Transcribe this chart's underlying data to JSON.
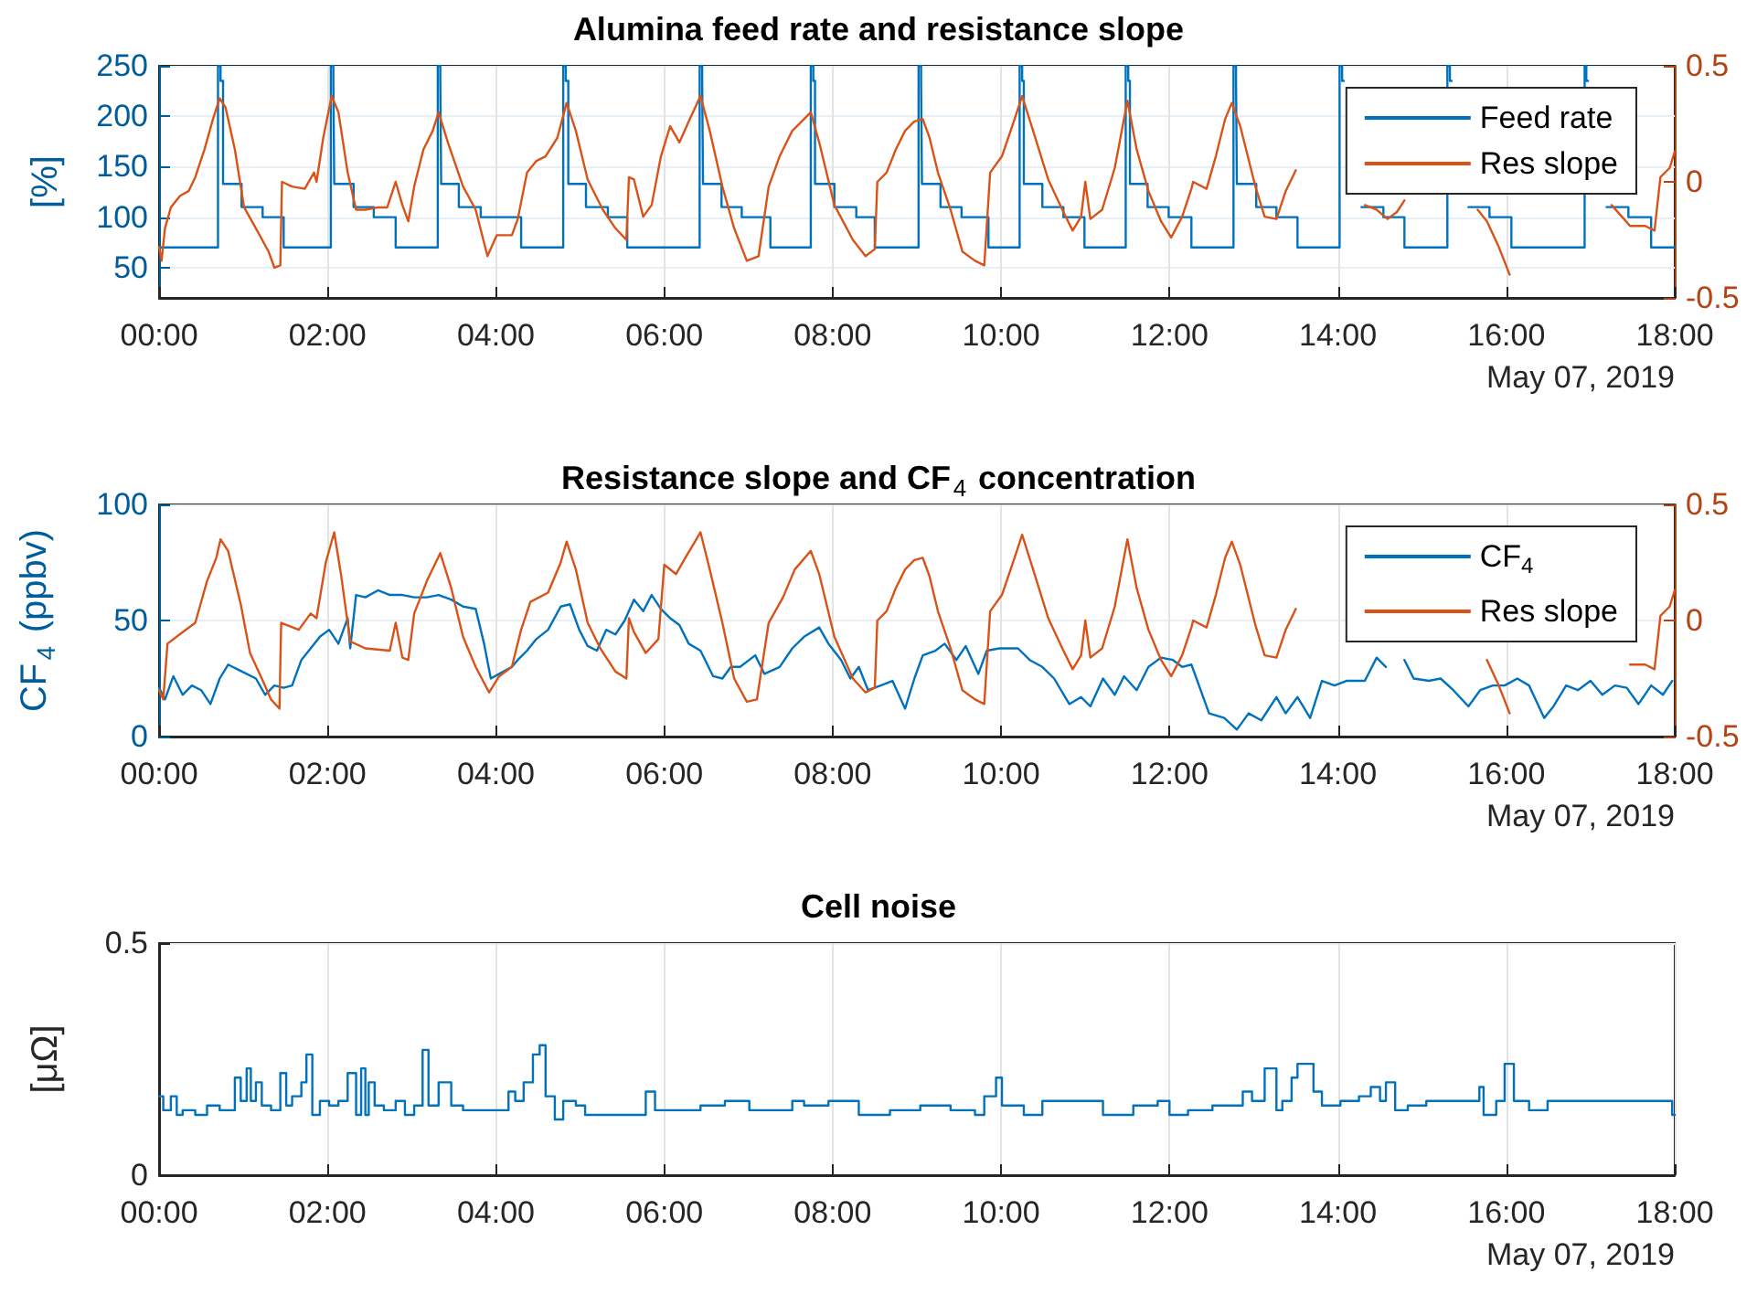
{
  "chart_data": [
    {
      "type": "step",
      "title": "Alumina feed rate and resistance slope",
      "ylabel": "[%]",
      "xlim": [
        0,
        18
      ],
      "xticks": [
        {
          "value": 0,
          "label": "00:00"
        },
        {
          "value": 2,
          "label": "02:00"
        },
        {
          "value": 4,
          "label": "04:00"
        },
        {
          "value": 6,
          "label": "06:00"
        },
        {
          "value": 8,
          "label": "08:00"
        },
        {
          "value": 10,
          "label": "10:00"
        },
        {
          "value": 12,
          "label": "12:00"
        },
        {
          "value": 14,
          "label": "14:00"
        },
        {
          "value": 16,
          "label": "16:00"
        },
        {
          "value": 18,
          "label": "18:00"
        }
      ],
      "ylim": [
        20,
        250
      ],
      "yticks": [
        50,
        100,
        150,
        200,
        250
      ],
      "y2lim": [
        -0.5,
        0.5
      ],
      "y2ticks": [
        -0.5,
        0,
        0.5
      ],
      "grid": true,
      "legend": "top right",
      "annotations": [
        "May 07, 2019"
      ],
      "series": [
        {
          "name": "Feed rate",
          "color": "#0072bd",
          "x": [
            0,
            0.7,
            0.73,
            0.76,
            0.98,
            1.23,
            1.48,
            2.04,
            2.07,
            2.08,
            2.31,
            2.55,
            2.81,
            3.31,
            3.34,
            3.35,
            3.56,
            3.82,
            4.3,
            4.8,
            4.83,
            4.86,
            5.07,
            5.33,
            5.56,
            6.42,
            6.45,
            6.46,
            6.68,
            6.92,
            7.26,
            7.74,
            7.77,
            7.79,
            8.02,
            8.28,
            8.5,
            9.02,
            9.05,
            9.06,
            9.28,
            9.53,
            9.85,
            10.22,
            10.25,
            10.27,
            10.49,
            10.74,
            10.99,
            11.48,
            11.51,
            11.53,
            11.74,
            11.99,
            12.26,
            12.76,
            12.79,
            12.8,
            13.03,
            13.27,
            13.52,
            14.02,
            14.05,
            14.07,
            14.28,
            14.54,
            14.79,
            15.3,
            15.33,
            15.35,
            15.55,
            15.8,
            16.06,
            16.93,
            16.95,
            16.97,
            17.19,
            17.45,
            17.72,
            18
          ],
          "values": [
            70,
            250,
            235,
            133,
            110,
            100,
            70,
            250,
            235,
            133,
            110,
            100,
            70,
            250,
            235,
            133,
            110,
            100,
            70,
            250,
            235,
            133,
            110,
            100,
            70,
            250,
            235,
            133,
            110,
            100,
            70,
            250,
            235,
            133,
            110,
            100,
            70,
            250,
            235,
            133,
            110,
            100,
            70,
            250,
            235,
            133,
            110,
            100,
            70,
            250,
            235,
            133,
            110,
            100,
            70,
            250,
            235,
            133,
            110,
            100,
            70,
            250,
            235,
            null,
            110,
            100,
            70,
            250,
            235,
            null,
            110,
            100,
            70,
            250,
            235,
            null,
            110,
            100,
            70,
            70
          ]
        },
        {
          "name": "Res slope",
          "type": "line",
          "axis": "y2",
          "color": "#d95319",
          "x": [
            0,
            0.03,
            0.07,
            0.14,
            0.25,
            0.35,
            0.43,
            0.54,
            0.64,
            0.72,
            0.79,
            0.9,
            1.01,
            1.15,
            1.3,
            1.37,
            1.44,
            1.46,
            1.58,
            1.73,
            1.84,
            1.87,
            1.95,
            2.05,
            2.13,
            2.24,
            2.34,
            2.45,
            2.6,
            2.71,
            2.81,
            2.89,
            2.96,
            3.03,
            3.14,
            3.25,
            3.32,
            3.43,
            3.61,
            3.76,
            3.9,
            4.01,
            4.19,
            4.26,
            4.37,
            4.48,
            4.59,
            4.73,
            4.84,
            4.95,
            5.09,
            5.27,
            5.42,
            5.55,
            5.58,
            5.64,
            5.75,
            5.85,
            5.96,
            6.07,
            6.18,
            6.29,
            6.43,
            6.54,
            6.69,
            6.83,
            6.98,
            7.12,
            7.24,
            7.37,
            7.52,
            7.74,
            7.84,
            8.02,
            8.24,
            8.39,
            8.5,
            8.53,
            8.64,
            8.75,
            8.86,
            8.97,
            9.07,
            9.15,
            9.25,
            9.4,
            9.54,
            9.69,
            9.8,
            9.87,
            10.01,
            10.16,
            10.25,
            10.38,
            10.56,
            10.74,
            10.85,
            10.95,
            11.0,
            11.06,
            11.2,
            11.35,
            11.5,
            11.61,
            11.75,
            11.9,
            12.02,
            12.15,
            12.26,
            12.28,
            12.44,
            12.55,
            12.66,
            12.74,
            12.84,
            13.02,
            13.13,
            13.27,
            13.38,
            13.5,
            13.9,
            14.32,
            14.46,
            14.59,
            14.7,
            14.79,
            15.2,
            15.66,
            15.77,
            15.91,
            16.04,
            16.6,
            17.25,
            17.47,
            17.65,
            17.76,
            17.83,
            17.94,
            18.0
          ],
          "values": [
            -0.28,
            -0.34,
            -0.2,
            -0.11,
            -0.06,
            -0.04,
            0.02,
            0.14,
            0.27,
            0.36,
            0.32,
            0.14,
            -0.11,
            -0.2,
            -0.3,
            -0.37,
            -0.36,
            0.0,
            -0.02,
            -0.03,
            0.04,
            0.0,
            0.19,
            0.37,
            0.3,
            0.04,
            -0.12,
            -0.12,
            -0.11,
            -0.11,
            0.0,
            -0.1,
            -0.17,
            -0.02,
            0.14,
            0.22,
            0.3,
            0.17,
            -0.02,
            -0.12,
            -0.32,
            -0.23,
            -0.23,
            -0.16,
            0.04,
            0.09,
            0.11,
            0.19,
            0.34,
            0.22,
            0.01,
            -0.12,
            -0.2,
            -0.25,
            0.02,
            0.01,
            -0.15,
            -0.1,
            0.11,
            0.24,
            0.17,
            0.26,
            0.37,
            0.22,
            -0.02,
            -0.2,
            -0.34,
            -0.32,
            -0.02,
            0.11,
            0.22,
            0.3,
            0.17,
            -0.1,
            -0.25,
            -0.32,
            -0.29,
            0.0,
            0.04,
            0.14,
            0.22,
            0.26,
            0.27,
            0.19,
            0.04,
            -0.12,
            -0.3,
            -0.34,
            -0.36,
            0.04,
            0.11,
            0.27,
            0.37,
            0.22,
            0.01,
            -0.13,
            -0.21,
            -0.15,
            0.0,
            -0.16,
            -0.12,
            0.06,
            0.35,
            0.14,
            -0.04,
            -0.17,
            -0.24,
            -0.15,
            -0.03,
            0.0,
            -0.03,
            0.11,
            0.27,
            0.34,
            0.24,
            -0.02,
            -0.15,
            -0.16,
            -0.04,
            0.05,
            null,
            -0.1,
            -0.12,
            -0.16,
            -0.13,
            -0.08,
            null,
            -0.12,
            -0.17,
            -0.28,
            -0.4,
            null,
            -0.1,
            -0.19,
            -0.19,
            -0.21,
            0.02,
            0.06,
            0.13
          ]
        }
      ]
    },
    {
      "type": "line",
      "title": "Resistance slope and CF$_{4}$ concentration",
      "ylabel": "CF$_{4}$ (ppbv)",
      "xlim": [
        0,
        18
      ],
      "xticks": [
        {
          "value": 0,
          "label": "00:00"
        },
        {
          "value": 2,
          "label": "02:00"
        },
        {
          "value": 4,
          "label": "04:00"
        },
        {
          "value": 6,
          "label": "06:00"
        },
        {
          "value": 8,
          "label": "08:00"
        },
        {
          "value": 10,
          "label": "10:00"
        },
        {
          "value": 12,
          "label": "12:00"
        },
        {
          "value": 14,
          "label": "14:00"
        },
        {
          "value": 16,
          "label": "16:00"
        },
        {
          "value": 18,
          "label": "18:00"
        }
      ],
      "ylim": [
        0,
        100
      ],
      "yticks": [
        0,
        50,
        100
      ],
      "y2lim": [
        -0.5,
        0.5
      ],
      "y2ticks": [
        -0.5,
        0,
        0.5
      ],
      "grid": true,
      "legend": "top right",
      "annotations": [
        "May 07, 2019"
      ],
      "series": [
        {
          "name": "CF$_{4}$",
          "color": "#0072bd",
          "x": [
            0,
            0.07,
            0.17,
            0.28,
            0.39,
            0.5,
            0.61,
            0.72,
            0.82,
            0.93,
            1.04,
            1.15,
            1.26,
            1.37,
            1.48,
            1.58,
            1.69,
            1.8,
            1.91,
            2.02,
            2.13,
            2.24,
            2.27,
            2.34,
            2.45,
            2.6,
            2.74,
            2.89,
            3.03,
            3.18,
            3.32,
            3.47,
            3.61,
            3.76,
            3.86,
            3.94,
            4.04,
            4.19,
            4.26,
            4.37,
            4.48,
            4.62,
            4.77,
            4.88,
            4.99,
            5.09,
            5.2,
            5.31,
            5.42,
            5.53,
            5.64,
            5.75,
            5.85,
            5.96,
            6.07,
            6.18,
            6.29,
            6.43,
            6.58,
            6.69,
            6.79,
            6.9,
            7.08,
            7.19,
            7.37,
            7.52,
            7.66,
            7.84,
            7.95,
            8.1,
            8.21,
            8.31,
            8.42,
            8.57,
            8.71,
            8.86,
            8.97,
            9.07,
            9.22,
            9.33,
            9.47,
            9.58,
            9.73,
            9.83,
            9.98,
            10.2,
            10.34,
            10.49,
            10.63,
            10.81,
            10.95,
            11.06,
            11.21,
            11.35,
            11.46,
            11.61,
            11.75,
            11.9,
            12.04,
            12.15,
            12.26,
            12.37,
            12.47,
            12.65,
            12.8,
            12.94,
            13.09,
            13.27,
            13.38,
            13.52,
            13.67,
            13.81,
            13.96,
            14.1,
            14.32,
            14.46,
            14.57,
            14.68,
            14.79,
            14.9,
            15.08,
            15.22,
            15.37,
            15.55,
            15.69,
            15.84,
            15.98,
            16.13,
            16.27,
            16.45,
            16.56,
            16.71,
            16.85,
            17.0,
            17.14,
            17.29,
            17.43,
            17.57,
            17.72,
            17.86,
            17.97
          ],
          "values": [
            21,
            16,
            26,
            18,
            22,
            20,
            14,
            25,
            31,
            29,
            27,
            25,
            18,
            22,
            21,
            22,
            33,
            38,
            43,
            46,
            40,
            51,
            38,
            61,
            60,
            63,
            61,
            61,
            60,
            60,
            61,
            59,
            56,
            55,
            40,
            25,
            27,
            30,
            33,
            37,
            42,
            46,
            56,
            57,
            46,
            39,
            37,
            46,
            44,
            50,
            59,
            54,
            61,
            55,
            51,
            48,
            40,
            37,
            26,
            25,
            30,
            30,
            35,
            27,
            30,
            38,
            43,
            47,
            40,
            33,
            25,
            30,
            20,
            22,
            24,
            12,
            25,
            35,
            37,
            40,
            33,
            39,
            27,
            37,
            38,
            38,
            33,
            30,
            25,
            14,
            17,
            13,
            25,
            18,
            26,
            20,
            30,
            34,
            33,
            30,
            31,
            20,
            10,
            8,
            3,
            10,
            7,
            17,
            10,
            17,
            8,
            24,
            22,
            24,
            24,
            34,
            30,
            null,
            33,
            25,
            24,
            25,
            20,
            13,
            20,
            22,
            22,
            25,
            22,
            8,
            13,
            22,
            20,
            24,
            18,
            22,
            21,
            14,
            22,
            18,
            24
          ]
        },
        {
          "name": "Res slope",
          "axis": "y2",
          "color": "#d95319",
          "x": [
            0,
            0.05,
            0.1,
            0.28,
            0.43,
            0.57,
            0.68,
            0.73,
            0.82,
            0.97,
            1.08,
            1.22,
            1.33,
            1.43,
            1.45,
            1.66,
            1.8,
            1.87,
            1.98,
            2.08,
            2.16,
            2.27,
            2.45,
            2.74,
            2.81,
            2.89,
            2.96,
            3.03,
            3.18,
            3.34,
            3.47,
            3.61,
            3.76,
            3.92,
            4.04,
            4.19,
            4.3,
            4.41,
            4.62,
            4.77,
            4.84,
            4.95,
            5.09,
            5.24,
            5.42,
            5.55,
            5.58,
            5.64,
            5.78,
            5.93,
            6.0,
            6.14,
            6.25,
            6.43,
            6.54,
            6.69,
            6.83,
            6.98,
            7.1,
            7.24,
            7.41,
            7.55,
            7.74,
            7.84,
            8.02,
            8.24,
            8.39,
            8.5,
            8.53,
            8.64,
            8.75,
            8.86,
            8.97,
            9.07,
            9.15,
            9.25,
            9.4,
            9.54,
            9.69,
            9.8,
            9.87,
            10.01,
            10.16,
            10.25,
            10.38,
            10.56,
            10.74,
            10.85,
            10.95,
            11.0,
            11.06,
            11.2,
            11.35,
            11.5,
            11.61,
            11.75,
            11.9,
            12.02,
            12.15,
            12.26,
            12.28,
            12.44,
            12.55,
            12.66,
            12.74,
            12.84,
            13.02,
            13.13,
            13.27,
            13.38,
            13.5,
            13.9,
            14.75,
            15.77,
            15.91,
            16.04,
            16.6,
            17.47,
            17.65,
            17.76,
            17.83,
            17.94,
            18.0
          ],
          "values": [
            -0.3,
            -0.34,
            -0.1,
            -0.05,
            -0.01,
            0.17,
            0.27,
            0.35,
            0.3,
            0.07,
            -0.14,
            -0.25,
            -0.34,
            -0.38,
            -0.01,
            -0.04,
            0.03,
            0.01,
            0.25,
            0.38,
            0.2,
            -0.09,
            -0.12,
            -0.13,
            -0.01,
            -0.16,
            -0.17,
            0.03,
            0.17,
            0.29,
            0.14,
            -0.07,
            -0.2,
            -0.31,
            -0.24,
            -0.2,
            -0.04,
            0.08,
            0.12,
            0.25,
            0.34,
            0.22,
            -0.01,
            -0.12,
            -0.22,
            -0.25,
            0.01,
            -0.05,
            -0.14,
            -0.08,
            0.24,
            0.2,
            0.27,
            0.38,
            0.22,
            -0.01,
            -0.25,
            -0.35,
            -0.34,
            -0.01,
            0.1,
            0.22,
            0.3,
            0.2,
            -0.07,
            -0.25,
            -0.31,
            -0.29,
            0.0,
            0.04,
            0.14,
            0.22,
            0.26,
            0.27,
            0.19,
            0.04,
            -0.12,
            -0.3,
            -0.34,
            -0.36,
            0.04,
            0.11,
            0.27,
            0.37,
            0.22,
            0.01,
            -0.13,
            -0.21,
            -0.15,
            0.0,
            -0.16,
            -0.12,
            0.06,
            0.35,
            0.14,
            -0.04,
            -0.17,
            -0.24,
            -0.15,
            -0.03,
            0.0,
            -0.03,
            0.11,
            0.27,
            0.34,
            0.24,
            -0.02,
            -0.15,
            -0.16,
            -0.04,
            0.05,
            null,
            null,
            -0.17,
            -0.28,
            -0.4,
            null,
            -0.19,
            -0.19,
            -0.21,
            0.02,
            0.06,
            0.13
          ]
        }
      ]
    },
    {
      "type": "step",
      "title": "Cell noise",
      "ylabel": "[μΩ]",
      "xlim": [
        0,
        18
      ],
      "xticks": [
        {
          "value": 0,
          "label": "00:00"
        },
        {
          "value": 2,
          "label": "02:00"
        },
        {
          "value": 4,
          "label": "04:00"
        },
        {
          "value": 6,
          "label": "06:00"
        },
        {
          "value": 8,
          "label": "08:00"
        },
        {
          "value": 10,
          "label": "10:00"
        },
        {
          "value": 12,
          "label": "12:00"
        },
        {
          "value": 14,
          "label": "14:00"
        },
        {
          "value": 16,
          "label": "16:00"
        },
        {
          "value": 18,
          "label": "18:00"
        }
      ],
      "ylim": [
        0,
        0.5
      ],
      "yticks": [
        0,
        0.5
      ],
      "grid": true,
      "annotations": [
        "May 07, 2019"
      ],
      "series": [
        {
          "color": "#0072bd",
          "x": [
            0,
            0.05,
            0.14,
            0.21,
            0.28,
            0.43,
            0.57,
            0.72,
            0.9,
            0.97,
            1.04,
            1.09,
            1.15,
            1.22,
            1.33,
            1.44,
            1.51,
            1.58,
            1.69,
            1.75,
            1.82,
            1.91,
            2.02,
            2.13,
            2.24,
            2.34,
            2.4,
            2.45,
            2.49,
            2.56,
            2.67,
            2.81,
            2.92,
            3.03,
            3.13,
            3.2,
            3.32,
            3.47,
            3.61,
            3.9,
            4.04,
            4.15,
            4.23,
            4.33,
            4.44,
            4.52,
            4.59,
            4.7,
            4.8,
            4.95,
            5.06,
            5.35,
            5.56,
            5.78,
            5.89,
            6.07,
            6.43,
            6.72,
            7.01,
            7.37,
            7.52,
            7.66,
            7.95,
            8.17,
            8.31,
            8.68,
            9.04,
            9.4,
            9.69,
            9.8,
            9.94,
            10.01,
            10.27,
            10.49,
            10.85,
            11.21,
            11.57,
            11.86,
            12.0,
            12.22,
            12.51,
            12.87,
            12.98,
            13.13,
            13.27,
            13.34,
            13.45,
            13.52,
            13.63,
            13.71,
            13.81,
            14.03,
            14.25,
            14.39,
            14.5,
            14.57,
            14.68,
            14.83,
            15.05,
            15.26,
            15.55,
            15.68,
            15.73,
            15.88,
            15.98,
            16.09,
            16.27,
            16.49,
            16.78,
            17.0,
            17.22,
            17.43,
            17.65,
            17.86,
            17.97,
            18
          ],
          "values": [
            0.17,
            0.14,
            0.17,
            0.13,
            0.14,
            0.13,
            0.15,
            0.14,
            0.21,
            0.16,
            0.23,
            0.16,
            0.2,
            0.15,
            0.14,
            0.22,
            0.15,
            0.17,
            0.2,
            0.26,
            0.13,
            0.16,
            0.15,
            0.16,
            0.22,
            0.13,
            0.23,
            0.13,
            0.2,
            0.15,
            0.14,
            0.16,
            0.13,
            0.15,
            0.27,
            0.15,
            0.2,
            0.15,
            0.14,
            0.14,
            0.14,
            0.18,
            0.16,
            0.2,
            0.26,
            0.28,
            0.17,
            0.12,
            0.16,
            0.15,
            0.13,
            0.13,
            0.13,
            0.18,
            0.14,
            0.14,
            0.15,
            0.16,
            0.14,
            0.14,
            0.16,
            0.15,
            0.16,
            0.16,
            0.13,
            0.14,
            0.15,
            0.14,
            0.13,
            0.17,
            0.21,
            0.15,
            0.13,
            0.16,
            0.16,
            0.13,
            0.15,
            0.16,
            0.13,
            0.14,
            0.15,
            0.18,
            0.16,
            0.23,
            0.14,
            0.16,
            0.21,
            0.24,
            0.24,
            0.18,
            0.15,
            0.16,
            0.17,
            0.19,
            0.16,
            0.2,
            0.14,
            0.15,
            0.16,
            0.16,
            0.16,
            0.19,
            0.13,
            0.16,
            0.24,
            0.16,
            0.14,
            0.16,
            0.16,
            0.16,
            0.16,
            0.16,
            0.16,
            0.16,
            0.13,
            0.13
          ]
        }
      ]
    }
  ]
}
